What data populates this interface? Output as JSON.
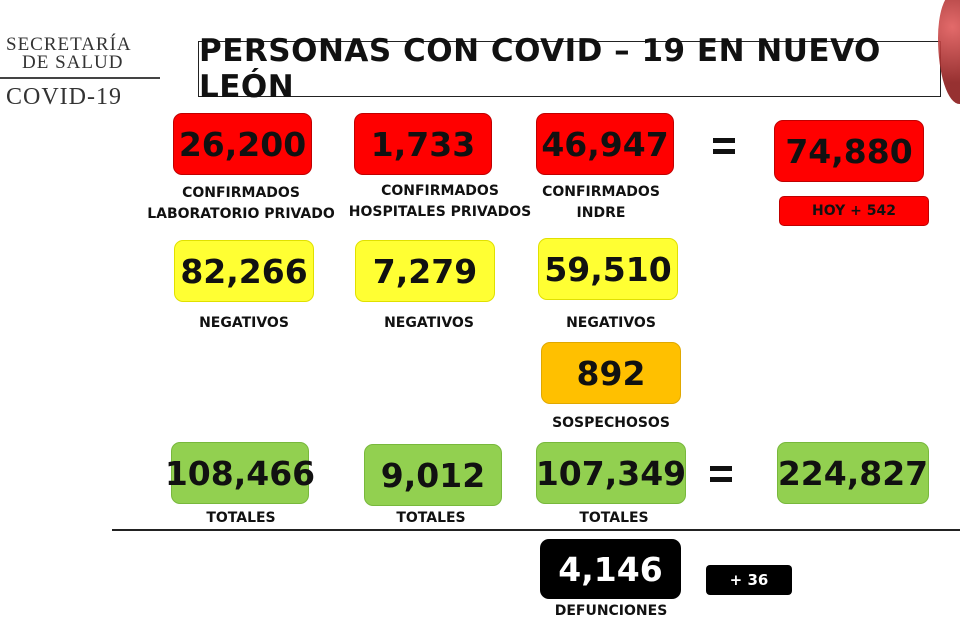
{
  "header": {
    "logo_line1": "SECRETARÍA",
    "logo_line2": "DE SALUD",
    "logo_line3": "COVID-19",
    "title": "PERSONAS CON COVID – 19 EN NUEVO LEÓN"
  },
  "confirmed": {
    "private_lab": {
      "value": "26,200",
      "label": "CONFIRMADOS\nLABORATORIO PRIVADO"
    },
    "private_hospitals": {
      "value": "1,733",
      "label": "CONFIRMADOS\nHOSPITALES PRIVADOS"
    },
    "indre": {
      "value": "46,947",
      "label": "CONFIRMADOS INDRE"
    },
    "total": {
      "value": "74,880",
      "today": "HOY + 542"
    }
  },
  "negatives": {
    "col1": {
      "value": "82,266",
      "label": "NEGATIVOS"
    },
    "col2": {
      "value": "7,279",
      "label": "NEGATIVOS"
    },
    "col3": {
      "value": "59,510",
      "label": "NEGATIVOS"
    }
  },
  "suspects": {
    "value": "892",
    "label": "SOSPECHOSOS"
  },
  "totals": {
    "col1": {
      "value": "108,466",
      "label": "TOTALES"
    },
    "col2": {
      "value": "9,012",
      "label": "TOTALES"
    },
    "col3": {
      "value": "107,349",
      "label": "TOTALES"
    },
    "grand": {
      "value": "224,827"
    }
  },
  "deaths": {
    "value": "4,146",
    "label": "DEFUNCIONES",
    "today": "+ 36"
  },
  "colors": {
    "red": "#ff0000",
    "yellow": "#ffff33",
    "orange": "#ffc000",
    "green": "#92d050",
    "black": "#000000"
  }
}
